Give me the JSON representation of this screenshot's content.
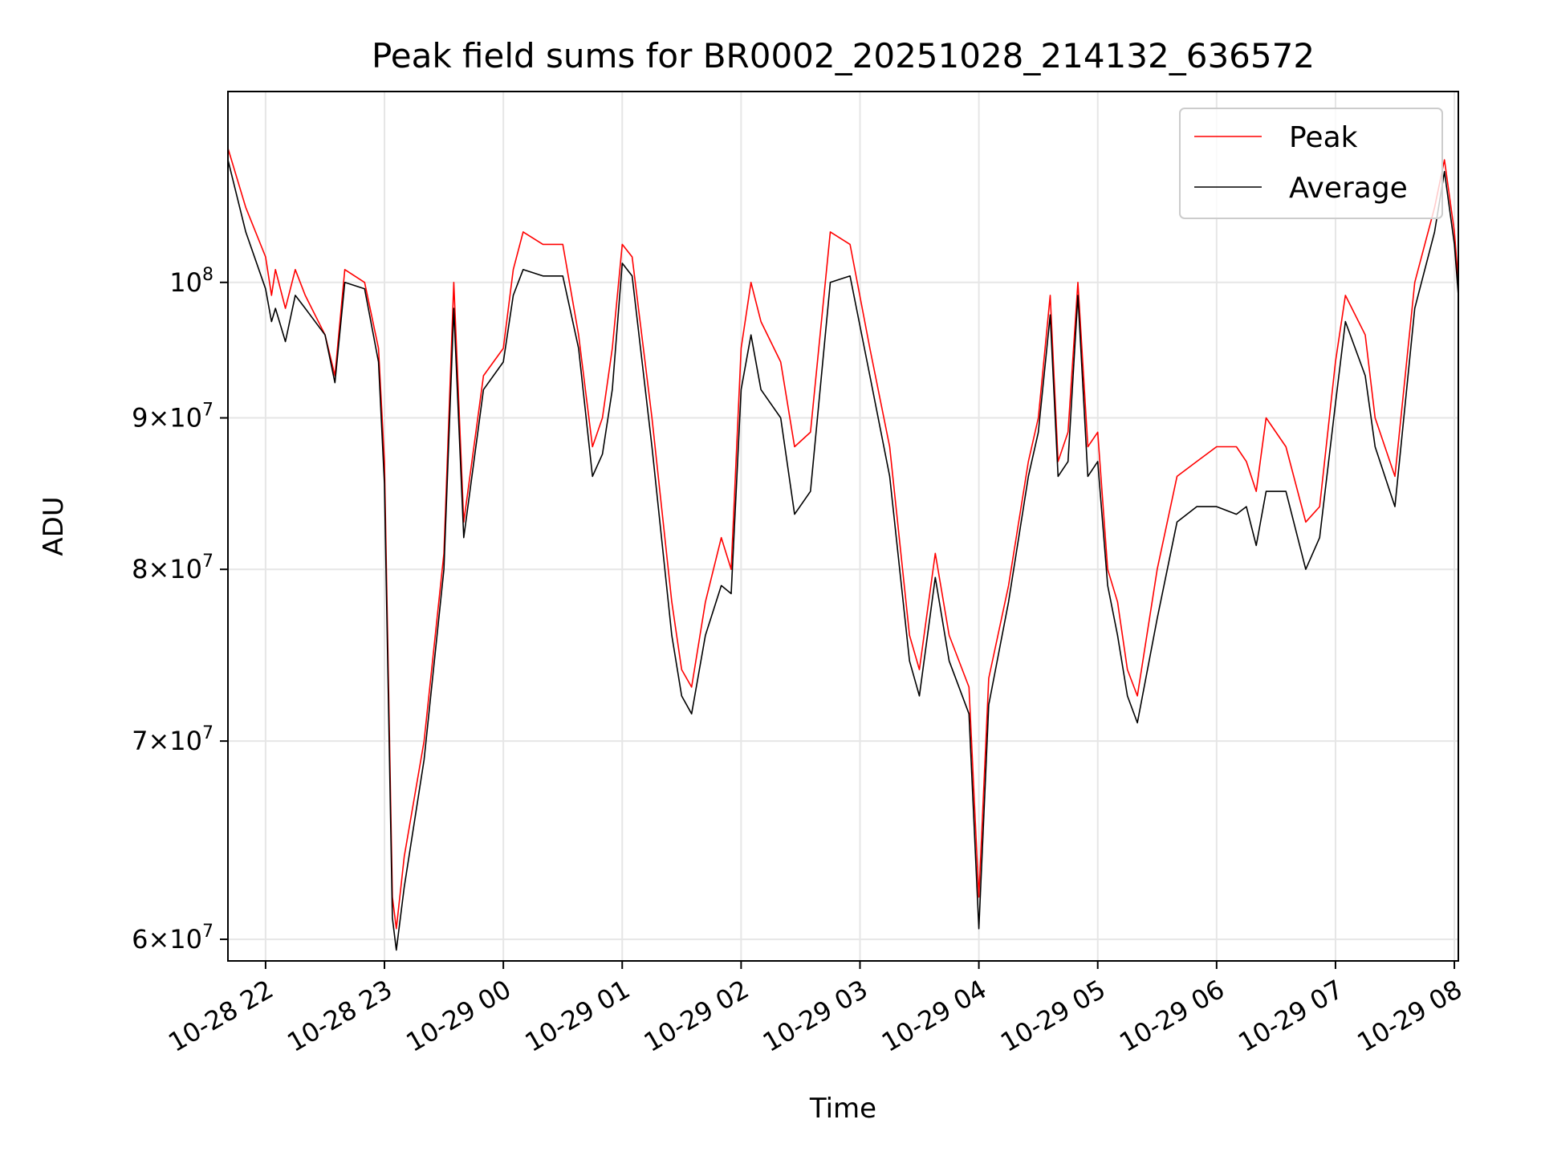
{
  "chart_data": {
    "type": "line",
    "title": "Peak field sums for BR0002_20251028_214132_636572",
    "xlabel": "Time",
    "ylabel": "ADU",
    "yscale": "log",
    "grid": true,
    "legend": "top-right",
    "xlim": [
      "2025-10-28 21:41",
      "2025-10-29 08:02"
    ],
    "ylim": [
      59000000,
      116000000
    ],
    "x_ticks": [
      {
        "t": "2025-10-28 22:00",
        "label": "10-28 22"
      },
      {
        "t": "2025-10-28 23:00",
        "label": "10-28 23"
      },
      {
        "t": "2025-10-29 00:00",
        "label": "10-29 00"
      },
      {
        "t": "2025-10-29 01:00",
        "label": "10-29 01"
      },
      {
        "t": "2025-10-29 02:00",
        "label": "10-29 02"
      },
      {
        "t": "2025-10-29 03:00",
        "label": "10-29 03"
      },
      {
        "t": "2025-10-29 04:00",
        "label": "10-29 04"
      },
      {
        "t": "2025-10-29 05:00",
        "label": "10-29 05"
      },
      {
        "t": "2025-10-29 06:00",
        "label": "10-29 06"
      },
      {
        "t": "2025-10-29 07:00",
        "label": "10-29 07"
      },
      {
        "t": "2025-10-29 08:00",
        "label": "10-29 08"
      }
    ],
    "y_ticks": [
      {
        "value": 60000000,
        "mant": "6",
        "exp": "7"
      },
      {
        "value": 70000000,
        "mant": "7",
        "exp": "7"
      },
      {
        "value": 80000000,
        "mant": "8",
        "exp": "7"
      },
      {
        "value": 90000000,
        "mant": "9",
        "exp": "7"
      },
      {
        "value": 100000000,
        "mant": "",
        "exp": "8"
      }
    ],
    "series": [
      {
        "name": "Peak",
        "color": "#ff0000",
        "x": [
          "2025-10-28 21:41",
          "2025-10-28 21:50",
          "2025-10-28 22:00",
          "2025-10-28 22:03",
          "2025-10-28 22:05",
          "2025-10-28 22:10",
          "2025-10-28 22:15",
          "2025-10-28 22:20",
          "2025-10-28 22:30",
          "2025-10-28 22:35",
          "2025-10-28 22:40",
          "2025-10-28 22:50",
          "2025-10-28 22:57",
          "2025-10-28 23:00",
          "2025-10-28 23:04",
          "2025-10-28 23:06",
          "2025-10-28 23:10",
          "2025-10-28 23:20",
          "2025-10-28 23:30",
          "2025-10-28 23:35",
          "2025-10-28 23:40",
          "2025-10-28 23:50",
          "2025-10-29 00:00",
          "2025-10-29 00:05",
          "2025-10-29 00:10",
          "2025-10-29 00:20",
          "2025-10-29 00:30",
          "2025-10-29 00:38",
          "2025-10-29 00:45",
          "2025-10-29 00:50",
          "2025-10-29 00:55",
          "2025-10-29 01:00",
          "2025-10-29 01:05",
          "2025-10-29 01:15",
          "2025-10-29 01:25",
          "2025-10-29 01:30",
          "2025-10-29 01:35",
          "2025-10-29 01:42",
          "2025-10-29 01:50",
          "2025-10-29 01:55",
          "2025-10-29 02:00",
          "2025-10-29 02:05",
          "2025-10-29 02:10",
          "2025-10-29 02:20",
          "2025-10-29 02:27",
          "2025-10-29 02:35",
          "2025-10-29 02:45",
          "2025-10-29 02:55",
          "2025-10-29 03:05",
          "2025-10-29 03:15",
          "2025-10-29 03:25",
          "2025-10-29 03:30",
          "2025-10-29 03:38",
          "2025-10-29 03:45",
          "2025-10-29 03:55",
          "2025-10-29 04:00",
          "2025-10-29 04:05",
          "2025-10-29 04:15",
          "2025-10-29 04:25",
          "2025-10-29 04:30",
          "2025-10-29 04:36",
          "2025-10-29 04:40",
          "2025-10-29 04:45",
          "2025-10-29 04:50",
          "2025-10-29 04:55",
          "2025-10-29 05:00",
          "2025-10-29 05:05",
          "2025-10-29 05:10",
          "2025-10-29 05:15",
          "2025-10-29 05:20",
          "2025-10-29 05:30",
          "2025-10-29 05:40",
          "2025-10-29 05:50",
          "2025-10-29 06:00",
          "2025-10-29 06:10",
          "2025-10-29 06:15",
          "2025-10-29 06:20",
          "2025-10-29 06:25",
          "2025-10-29 06:35",
          "2025-10-29 06:45",
          "2025-10-29 06:52",
          "2025-10-29 07:00",
          "2025-10-29 07:05",
          "2025-10-29 07:15",
          "2025-10-29 07:20",
          "2025-10-29 07:30",
          "2025-10-29 07:40",
          "2025-10-29 07:50",
          "2025-10-29 07:55",
          "2025-10-29 08:00",
          "2025-10-29 08:02"
        ],
        "values": [
          111000000,
          106000000,
          102000000,
          99000000,
          101000000,
          98000000,
          101000000,
          99000000,
          96000000,
          93000000,
          101000000,
          100000000,
          95000000,
          87000000,
          62000000,
          60500000,
          64000000,
          70000000,
          81000000,
          100000000,
          83000000,
          93000000,
          95000000,
          101000000,
          104000000,
          103000000,
          103000000,
          96000000,
          88000000,
          90000000,
          95000000,
          103000000,
          102000000,
          90000000,
          78000000,
          74000000,
          73000000,
          78000000,
          82000000,
          80000000,
          95000000,
          100000000,
          97000000,
          94000000,
          88000000,
          89000000,
          104000000,
          103000000,
          95000000,
          88000000,
          76000000,
          74000000,
          81000000,
          76000000,
          73000000,
          62000000,
          73500000,
          79000000,
          87000000,
          90000000,
          99000000,
          87000000,
          89000000,
          100000000,
          88000000,
          89000000,
          80000000,
          78000000,
          74000000,
          72500000,
          80000000,
          86000000,
          87000000,
          88000000,
          88000000,
          87000000,
          85000000,
          90000000,
          88000000,
          83000000,
          84000000,
          94000000,
          99000000,
          96000000,
          90000000,
          86000000,
          100000000,
          106000000,
          110000000,
          104000000,
          100000000
        ]
      },
      {
        "name": "Average",
        "color": "#000000",
        "x": [
          "2025-10-28 21:41",
          "2025-10-28 21:50",
          "2025-10-28 22:00",
          "2025-10-28 22:03",
          "2025-10-28 22:05",
          "2025-10-28 22:10",
          "2025-10-28 22:15",
          "2025-10-28 22:20",
          "2025-10-28 22:30",
          "2025-10-28 22:35",
          "2025-10-28 22:40",
          "2025-10-28 22:50",
          "2025-10-28 22:57",
          "2025-10-28 23:00",
          "2025-10-28 23:04",
          "2025-10-28 23:06",
          "2025-10-28 23:10",
          "2025-10-28 23:20",
          "2025-10-28 23:30",
          "2025-10-28 23:35",
          "2025-10-28 23:40",
          "2025-10-28 23:50",
          "2025-10-29 00:00",
          "2025-10-29 00:05",
          "2025-10-29 00:10",
          "2025-10-29 00:20",
          "2025-10-29 00:30",
          "2025-10-29 00:38",
          "2025-10-29 00:45",
          "2025-10-29 00:50",
          "2025-10-29 00:55",
          "2025-10-29 01:00",
          "2025-10-29 01:05",
          "2025-10-29 01:15",
          "2025-10-29 01:25",
          "2025-10-29 01:30",
          "2025-10-29 01:35",
          "2025-10-29 01:42",
          "2025-10-29 01:50",
          "2025-10-29 01:55",
          "2025-10-29 02:00",
          "2025-10-29 02:05",
          "2025-10-29 02:10",
          "2025-10-29 02:20",
          "2025-10-29 02:27",
          "2025-10-29 02:35",
          "2025-10-29 02:45",
          "2025-10-29 02:55",
          "2025-10-29 03:05",
          "2025-10-29 03:15",
          "2025-10-29 03:25",
          "2025-10-29 03:30",
          "2025-10-29 03:38",
          "2025-10-29 03:45",
          "2025-10-29 03:55",
          "2025-10-29 04:00",
          "2025-10-29 04:05",
          "2025-10-29 04:15",
          "2025-10-29 04:25",
          "2025-10-29 04:30",
          "2025-10-29 04:36",
          "2025-10-29 04:40",
          "2025-10-29 04:45",
          "2025-10-29 04:50",
          "2025-10-29 04:55",
          "2025-10-29 05:00",
          "2025-10-29 05:05",
          "2025-10-29 05:10",
          "2025-10-29 05:15",
          "2025-10-29 05:20",
          "2025-10-29 05:30",
          "2025-10-29 05:40",
          "2025-10-29 05:50",
          "2025-10-29 06:00",
          "2025-10-29 06:10",
          "2025-10-29 06:15",
          "2025-10-29 06:20",
          "2025-10-29 06:25",
          "2025-10-29 06:35",
          "2025-10-29 06:45",
          "2025-10-29 06:52",
          "2025-10-29 07:00",
          "2025-10-29 07:05",
          "2025-10-29 07:15",
          "2025-10-29 07:20",
          "2025-10-29 07:30",
          "2025-10-29 07:40",
          "2025-10-29 07:50",
          "2025-10-29 07:55",
          "2025-10-29 08:00",
          "2025-10-29 08:02"
        ],
        "values": [
          110000000,
          104000000,
          99500000,
          97000000,
          98000000,
          95500000,
          99000000,
          98000000,
          96000000,
          92500000,
          100000000,
          99500000,
          94000000,
          85500000,
          61000000,
          59500000,
          62500000,
          69000000,
          80000000,
          98000000,
          82000000,
          92000000,
          94000000,
          99000000,
          101000000,
          100500000,
          100500000,
          95000000,
          86000000,
          87500000,
          92000000,
          101500000,
          100500000,
          88000000,
          76000000,
          72500000,
          71500000,
          76000000,
          79000000,
          78500000,
          92000000,
          96000000,
          92000000,
          90000000,
          83500000,
          85000000,
          100000000,
          100500000,
          93000000,
          86000000,
          74500000,
          72500000,
          79500000,
          74500000,
          71500000,
          60500000,
          72000000,
          78000000,
          86000000,
          89000000,
          97500000,
          86000000,
          87000000,
          99000000,
          86000000,
          87000000,
          79000000,
          76000000,
          72500000,
          71000000,
          77000000,
          83000000,
          84000000,
          84000000,
          83500000,
          84000000,
          81500000,
          85000000,
          85000000,
          80000000,
          82000000,
          91000000,
          97000000,
          93000000,
          88000000,
          84000000,
          98000000,
          104000000,
          109000000,
          103000000,
          99000000
        ]
      }
    ]
  }
}
